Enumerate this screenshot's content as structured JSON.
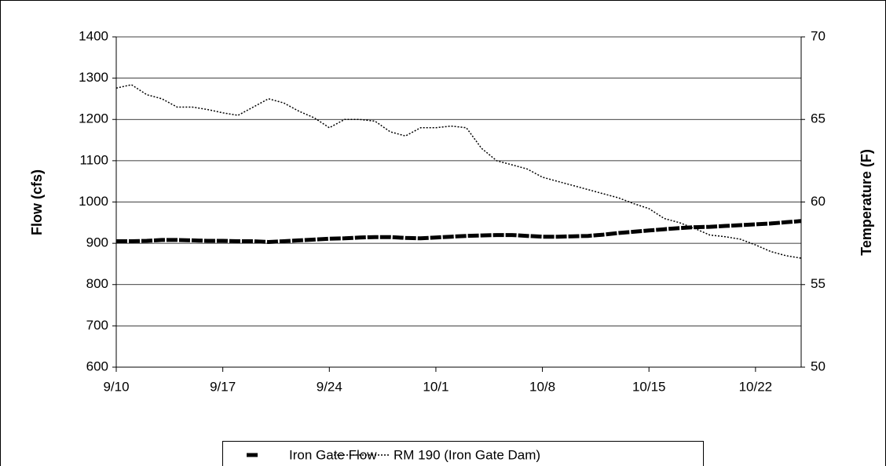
{
  "chart_data": {
    "type": "line",
    "categories": [
      "9/10",
      null,
      null,
      null,
      null,
      null,
      null,
      "9/17",
      null,
      null,
      null,
      null,
      null,
      null,
      "9/24",
      null,
      null,
      null,
      null,
      null,
      null,
      "10/1",
      null,
      null,
      null,
      null,
      null,
      null,
      "10/8",
      null,
      null,
      null,
      null,
      null,
      null,
      "10/15",
      null,
      null,
      null,
      null,
      null,
      null,
      "10/22",
      null,
      null,
      null
    ],
    "ylabel": "Flow (cfs)",
    "y2label": "Temperature (F)",
    "ylim": [
      600,
      1400
    ],
    "yticks": [
      600,
      700,
      800,
      900,
      1000,
      1100,
      1200,
      1300,
      1400
    ],
    "y2lim": [
      50,
      70
    ],
    "y2ticks": [
      50,
      55,
      60,
      65,
      70
    ],
    "grid": true,
    "legend": "bottom",
    "series": [
      {
        "name": "Iron Gate Flow",
        "color": "#000000",
        "style": "thick-dash",
        "values": [
          905,
          905,
          906,
          908,
          908,
          907,
          906,
          906,
          905,
          905,
          903,
          905,
          907,
          909,
          911,
          912,
          914,
          915,
          915,
          913,
          912,
          914,
          916,
          918,
          919,
          920,
          920,
          918,
          916,
          916,
          917,
          918,
          921,
          925,
          928,
          931,
          934,
          937,
          939,
          940,
          942,
          944,
          946,
          948,
          951,
          954
        ]
      },
      {
        "name": "RM 190 (Iron Gate Dam)",
        "color": "#000000",
        "style": "dotted",
        "axis": "y2",
        "values": [
          66.9,
          67.1,
          66.5,
          66.25,
          65.75,
          65.75,
          65.6,
          65.4,
          65.25,
          65.75,
          66.25,
          66,
          65.5,
          65.1,
          64.5,
          65,
          65,
          64.9,
          64.25,
          64,
          64.5,
          64.5,
          64.6,
          64.5,
          63.25,
          62.5,
          62.25,
          62,
          61.5,
          61.25,
          61,
          60.75,
          60.5,
          60.25,
          59.9,
          59.6,
          59,
          58.75,
          58.4,
          58,
          57.9,
          57.75,
          57.4,
          57,
          56.75,
          56.6
        ]
      }
    ]
  }
}
